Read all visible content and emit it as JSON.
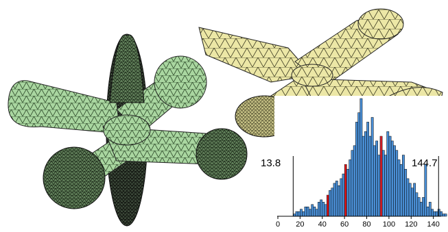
{
  "colors": {
    "green_mesh": "#a9d6a0",
    "green_dark": "#3f5a3a",
    "yellow_mesh": "#ece7a6",
    "yellow_dark": "#5b5a33",
    "bar_fill": "#4a8fd6",
    "bar_edge": "#000000",
    "marker_red": "#e01010"
  },
  "chart_data": {
    "type": "bar",
    "min_label": "13.8",
    "max_label": "144.7",
    "min_value": 13.8,
    "max_value": 144.7,
    "x_ticks": [
      "0",
      "20",
      "40",
      "60",
      "80",
      "100",
      "120",
      "140"
    ],
    "xlim": [
      0,
      147
    ],
    "bin_width": 2,
    "bin_start": 14,
    "values": [
      1,
      2,
      2,
      3,
      2,
      4,
      4,
      3,
      5,
      4,
      3,
      6,
      7,
      6,
      5,
      9,
      11,
      12,
      14,
      15,
      13,
      16,
      18,
      22,
      20,
      24,
      28,
      30,
      40,
      44,
      50,
      34,
      36,
      40,
      34,
      42,
      30,
      32,
      26,
      34,
      28,
      26,
      36,
      34,
      32,
      30,
      28,
      24,
      22,
      26,
      20,
      16,
      14,
      12,
      14,
      10,
      8,
      6,
      8,
      22,
      4,
      6,
      3,
      2,
      2,
      3,
      2,
      1,
      1
    ],
    "markers": [
      45,
      61,
      93
    ]
  }
}
